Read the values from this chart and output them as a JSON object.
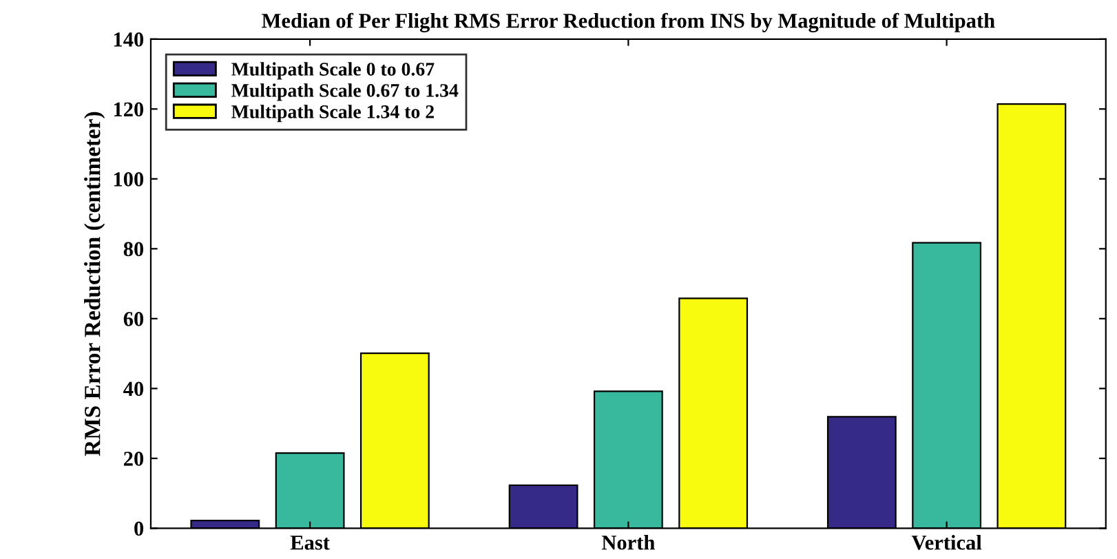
{
  "chart_data": {
    "type": "bar",
    "title": "Median of Per Flight RMS Error Reduction from INS by Magnitude of Multipath",
    "ylabel": "RMS Error Reduction (centimeter)",
    "categories": [
      "East",
      "North",
      "Vertical"
    ],
    "series": [
      {
        "name": "Multipath Scale 0 to 0.67",
        "color": "#352a87",
        "values": [
          2.2,
          12.3,
          31.9
        ]
      },
      {
        "name": "Multipath Scale 0.67 to 1.34",
        "color": "#38b99e",
        "values": [
          21.5,
          39.2,
          81.7
        ]
      },
      {
        "name": "Multipath Scale 1.34 to 2",
        "color": "#f9fb0e",
        "values": [
          50.1,
          65.8,
          121.4
        ]
      }
    ],
    "ylim": [
      0,
      140
    ],
    "yticks": [
      0,
      20,
      40,
      60,
      80,
      100,
      120,
      140
    ],
    "grid": false,
    "legend": "top left"
  }
}
